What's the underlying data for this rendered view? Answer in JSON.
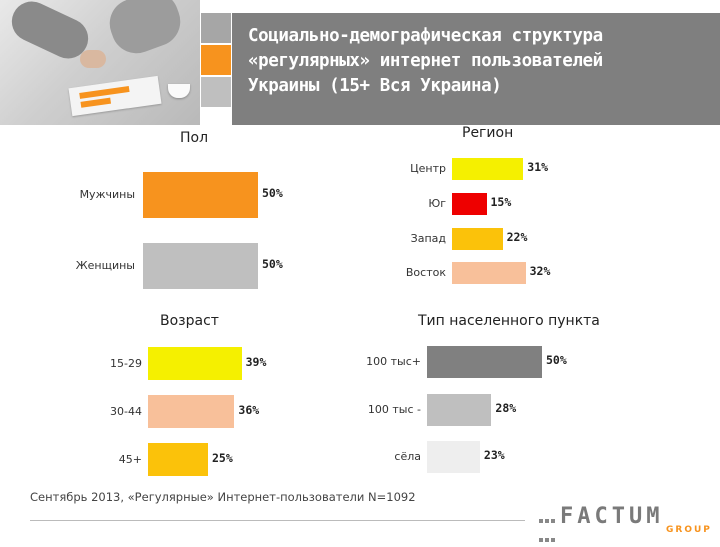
{
  "header": {
    "title_line1": "Социально-демографическая структура",
    "title_line2": "«регулярных» интернет пользователей",
    "title_line3": "Украины (15+ Вся Украина)",
    "accent_squares": [
      "#a6a6a6",
      "#f7931e",
      "#bfbfbf"
    ]
  },
  "chart_data": [
    {
      "type": "bar",
      "orientation": "horizontal",
      "title": "Пол",
      "categories": [
        "Мужчины",
        "Женщины"
      ],
      "values": [
        50,
        50
      ],
      "value_labels": [
        "50%",
        "50%"
      ],
      "colors": [
        "#f7931e",
        "#bfbfbf"
      ],
      "unit": "%"
    },
    {
      "type": "bar",
      "orientation": "horizontal",
      "title": "Регион",
      "categories": [
        "Центр",
        "Юг",
        "Запад",
        "Восток"
      ],
      "values": [
        31,
        15,
        22,
        32
      ],
      "value_labels": [
        "31%",
        "15%",
        "22%",
        "32%"
      ],
      "colors": [
        "#f5f000",
        "#ee0000",
        "#fbc20a",
        "#f8c09a"
      ],
      "unit": "%"
    },
    {
      "type": "bar",
      "orientation": "horizontal",
      "title": "Возраст",
      "categories": [
        "15-29",
        "30-44",
        "45+"
      ],
      "values": [
        39,
        36,
        25
      ],
      "value_labels": [
        "39%",
        "36%",
        "25%"
      ],
      "colors": [
        "#f5f000",
        "#f8c09a",
        "#fbc20a"
      ],
      "unit": "%"
    },
    {
      "type": "bar",
      "orientation": "horizontal",
      "title": "Тип населенного пункта",
      "categories": [
        "100 тыс+",
        "100 тыс -",
        "сёла"
      ],
      "values": [
        50,
        28,
        23
      ],
      "value_labels": [
        "50%",
        "28%",
        "23%"
      ],
      "colors": [
        "#808080",
        "#bfbfbf",
        "#eeeeee"
      ],
      "unit": "%"
    }
  ],
  "footer": {
    "note": "Сентябрь 2013, «Регулярные» Интернет-пользователи N=1092"
  },
  "logo": {
    "word": "FACTUM",
    "sub": "GROUP"
  }
}
